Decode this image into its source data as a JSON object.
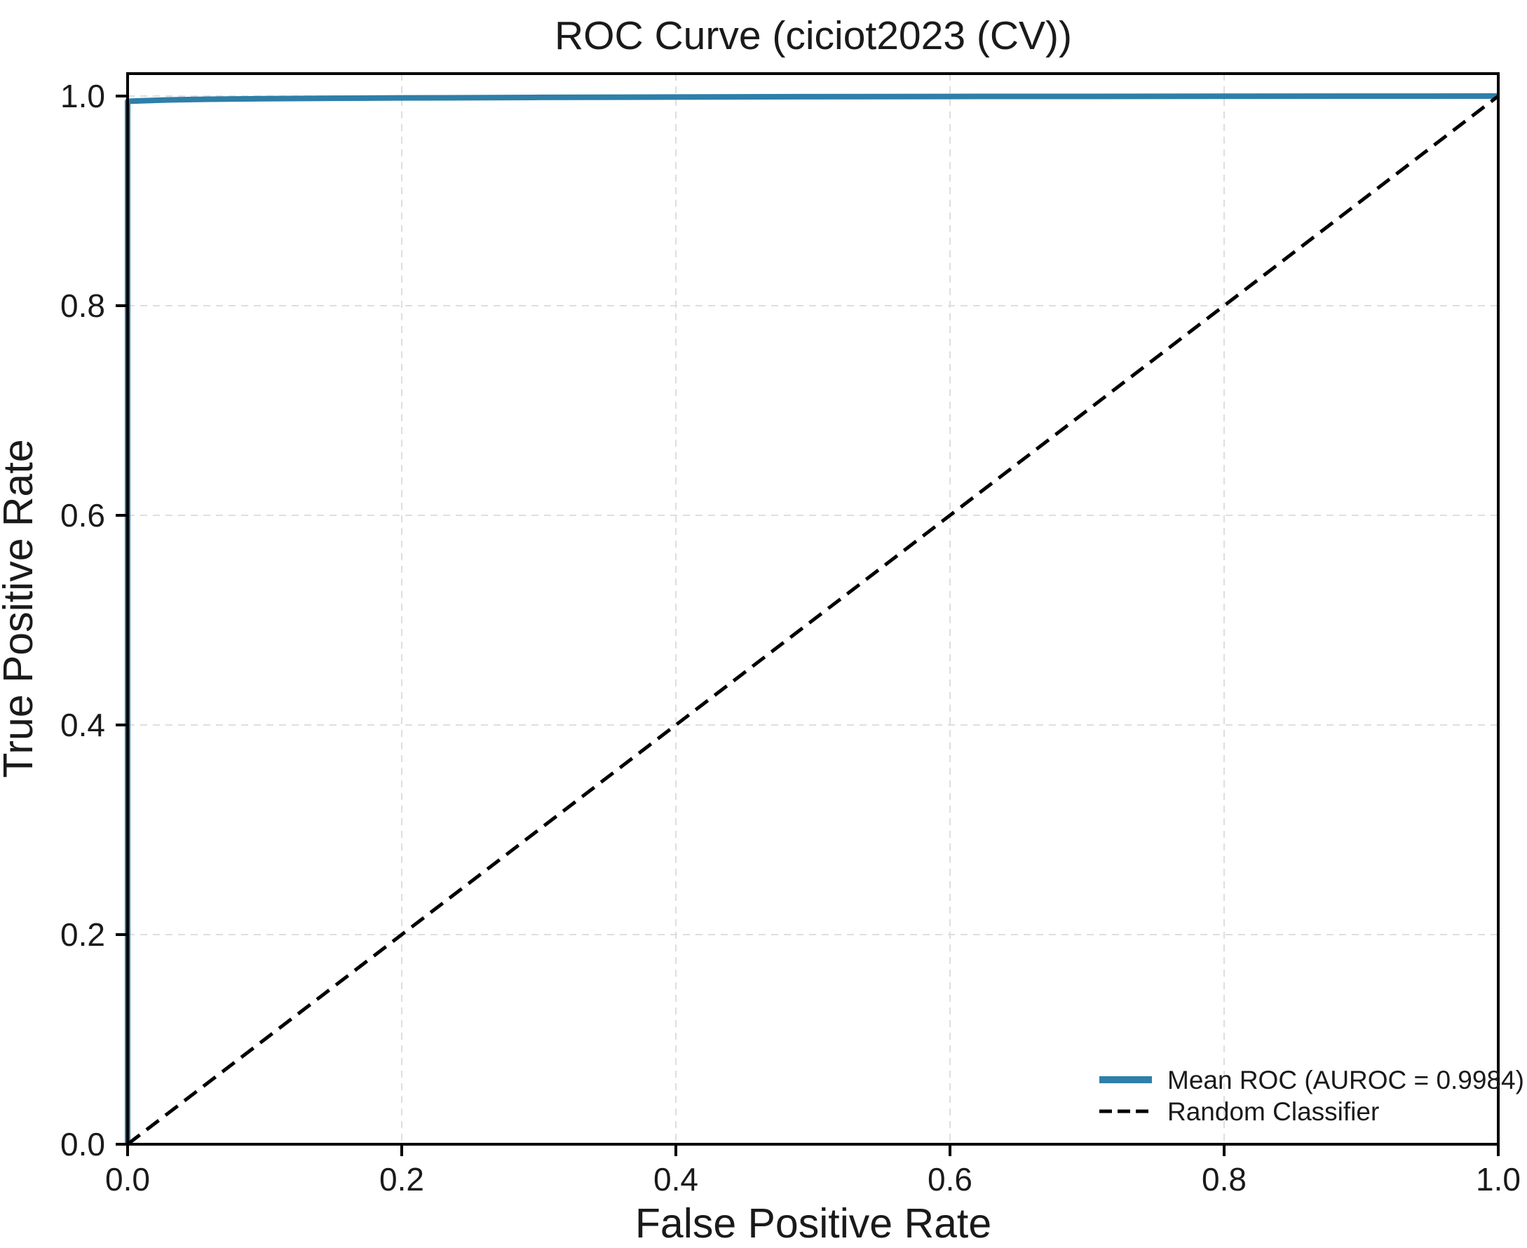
{
  "page": {
    "background": "#ffffff"
  },
  "colors": {
    "text": "#1a1a1a",
    "spine": "#000000",
    "grid": "#dedede",
    "roc_blue": "#2e7fa9",
    "random_black": "#000000"
  },
  "chart_data": {
    "type": "line",
    "title": "ROC Curve (ciciot2023 (CV))",
    "xlabel": "False Positive Rate",
    "ylabel": "True Positive Rate",
    "xlim": [
      0,
      1.0
    ],
    "ylim": [
      0,
      1.0214
    ],
    "x_ticks": [
      "0.0",
      "0.2",
      "0.4",
      "0.6",
      "0.8",
      "1.0"
    ],
    "y_ticks": [
      "0.0",
      "0.2",
      "0.4",
      "0.6",
      "0.8",
      "1.0"
    ],
    "grid": true,
    "grid_style": "dashed",
    "legend_position": "lower right",
    "auroc": 0.9984,
    "series": [
      {
        "name": "Mean ROC (AUROC = 0.9984)",
        "color": "#2e7fa9",
        "style": "solid",
        "line_width": 8,
        "points": [
          [
            0.0,
            0.0
          ],
          [
            0.0,
            0.995
          ],
          [
            0.01,
            0.9955
          ],
          [
            0.03,
            0.9963
          ],
          [
            0.06,
            0.997
          ],
          [
            0.1,
            0.9975
          ],
          [
            0.15,
            0.9979
          ],
          [
            0.2,
            0.9982
          ],
          [
            0.3,
            0.9987
          ],
          [
            0.4,
            0.9991
          ],
          [
            0.5,
            0.9994
          ],
          [
            0.6,
            0.9996
          ],
          [
            0.7,
            0.9997
          ],
          [
            0.8,
            0.9998
          ],
          [
            0.9,
            0.9999
          ],
          [
            1.0,
            1.0
          ]
        ]
      },
      {
        "name": "Random Classifier",
        "color": "#000000",
        "style": "dashed",
        "line_width": 5,
        "points": [
          [
            0.0,
            0.0
          ],
          [
            1.0,
            1.0
          ]
        ]
      }
    ]
  }
}
